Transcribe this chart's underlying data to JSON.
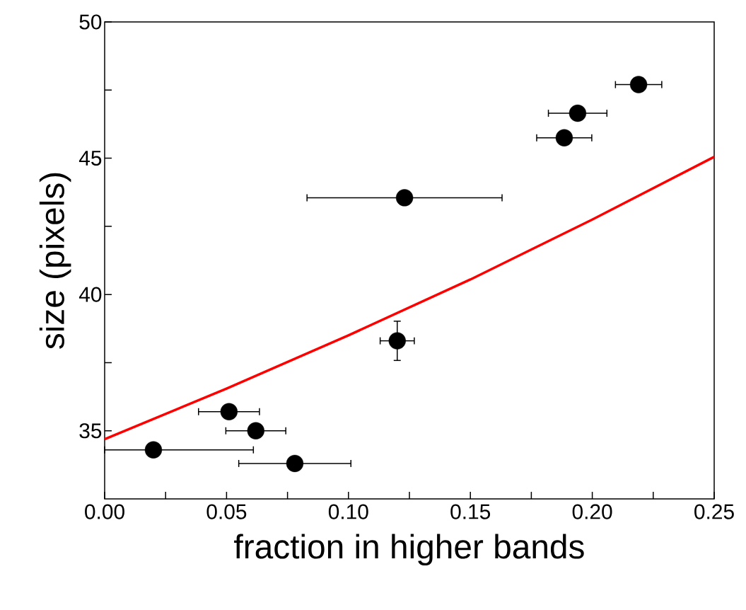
{
  "chart_data": {
    "type": "scatter",
    "xlabel": "fraction in higher bands",
    "ylabel": "size (pixels)",
    "xlim": [
      0,
      0.25
    ],
    "ylim": [
      32.5,
      50
    ],
    "xticks": [
      {
        "value": 0,
        "label": "0.00"
      },
      {
        "value": 0.025,
        "label": null
      },
      {
        "value": 0.05,
        "label": "0.05"
      },
      {
        "value": 0.075,
        "label": null
      },
      {
        "value": 0.1,
        "label": "0.10"
      },
      {
        "value": 0.125,
        "label": null
      },
      {
        "value": 0.15,
        "label": "0.15"
      },
      {
        "value": 0.175,
        "label": null
      },
      {
        "value": 0.2,
        "label": "0.20"
      },
      {
        "value": 0.225,
        "label": null
      },
      {
        "value": 0.25,
        "label": "0.25"
      }
    ],
    "yticks": [
      {
        "value": 35,
        "label": "35"
      },
      {
        "value": 37.5,
        "label": null
      },
      {
        "value": 40,
        "label": "40"
      },
      {
        "value": 42.5,
        "label": null
      },
      {
        "value": 45,
        "label": "45"
      },
      {
        "value": 47.5,
        "label": null
      },
      {
        "value": 50,
        "label": "50"
      }
    ],
    "grid": false,
    "series": [
      {
        "color": "#000000",
        "marker": "circle",
        "x": [
          0.02,
          0.051,
          0.062,
          0.078,
          0.12,
          0.123,
          0.1885,
          0.194,
          0.219
        ],
        "values": [
          34.3,
          35.7,
          35.0,
          33.8,
          38.3,
          43.55,
          45.75,
          46.65,
          47.7
        ],
        "xerrors": [
          [
            0.0,
            0.061
          ],
          0.0125,
          0.0123,
          0.023,
          0.007,
          0.04,
          0.0113,
          0.012,
          0.0095
        ],
        "errors": [
          null,
          null,
          null,
          null,
          0.72,
          null,
          null,
          null,
          null
        ]
      },
      {
        "type": "line",
        "color": "#ff0000",
        "marker": "none",
        "line_style": "solid",
        "x": [
          0,
          0.05,
          0.1,
          0.15,
          0.2,
          0.25
        ],
        "values": [
          34.69,
          36.55,
          38.5,
          40.55,
          42.75,
          45.05
        ]
      }
    ]
  }
}
